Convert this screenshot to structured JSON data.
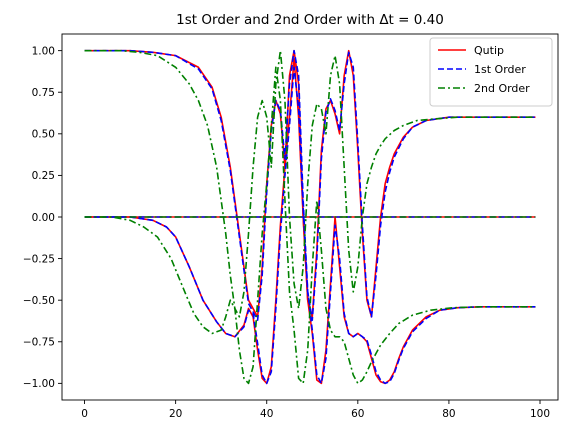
{
  "chart_data": {
    "type": "line",
    "title": "1st Order and 2nd Order with Δt = 0.40",
    "xlabel": "",
    "ylabel": "",
    "xlim": [
      -4.95,
      103.95
    ],
    "ylim": [
      -1.1,
      1.1
    ],
    "xticks": [
      0,
      20,
      40,
      60,
      80,
      100
    ],
    "xtick_labels": [
      "0",
      "20",
      "40",
      "60",
      "80",
      "100"
    ],
    "yticks": [
      -1.0,
      -0.75,
      -0.5,
      -0.25,
      0.0,
      0.25,
      0.5,
      0.75,
      1.0
    ],
    "ytick_labels": [
      "−1.00",
      "−0.75",
      "−0.50",
      "−0.25",
      "0.00",
      "0.25",
      "0.50",
      "0.75",
      "1.00"
    ],
    "grid": false,
    "legend_position": "top-right",
    "series": [
      {
        "name": "Qutip",
        "color": "#ff0000",
        "style": "solid",
        "lines": [
          {
            "x": [
              0,
              10,
              15,
              20,
              25,
              28,
              30,
              32,
              34,
              36,
              38,
              39,
              40,
              41,
              42,
              43,
              44,
              45,
              46,
              47,
              48,
              49,
              50,
              51,
              52,
              53,
              54,
              55,
              56,
              57,
              58,
              59,
              60,
              61,
              62,
              63,
              64,
              65,
              66,
              67,
              68,
              70,
              72,
              75,
              80,
              85,
              90,
              95,
              99
            ],
            "y": [
              1.0,
              1.0,
              0.99,
              0.97,
              0.9,
              0.78,
              0.6,
              0.3,
              -0.1,
              -0.5,
              -0.6,
              -0.3,
              0.2,
              0.55,
              0.7,
              0.62,
              0.3,
              0.85,
              1.0,
              0.8,
              0.0,
              -0.5,
              -0.6,
              -0.2,
              0.4,
              0.65,
              0.7,
              0.62,
              0.5,
              0.85,
              1.0,
              0.85,
              0.4,
              -0.1,
              -0.5,
              -0.6,
              -0.3,
              0.0,
              0.2,
              0.3,
              0.38,
              0.48,
              0.54,
              0.58,
              0.6,
              0.6,
              0.6,
              0.6,
              0.6
            ]
          },
          {
            "x": [
              0,
              10,
              15,
              18,
              20,
              23,
              26,
              29,
              31,
              33,
              35,
              36,
              37,
              38,
              39,
              40,
              41,
              42,
              43,
              44,
              45,
              46,
              47,
              48,
              49,
              50,
              51,
              52,
              53,
              54,
              55,
              56,
              57,
              58,
              59,
              60,
              61,
              62,
              63,
              64,
              65,
              66,
              67,
              68,
              69,
              70,
              72,
              75,
              78,
              82,
              87,
              92,
              99
            ],
            "y": [
              0.0,
              0.0,
              -0.02,
              -0.06,
              -0.12,
              -0.3,
              -0.5,
              -0.63,
              -0.7,
              -0.72,
              -0.65,
              -0.55,
              -0.6,
              -0.8,
              -0.97,
              -1.0,
              -0.9,
              -0.5,
              -0.05,
              0.3,
              0.6,
              0.95,
              0.6,
              0.0,
              -0.5,
              -0.7,
              -0.98,
              -1.0,
              -0.8,
              -0.4,
              0.0,
              -0.3,
              -0.6,
              -0.7,
              -0.72,
              -0.7,
              -0.72,
              -0.75,
              -0.85,
              -0.95,
              -0.99,
              -1.0,
              -0.98,
              -0.93,
              -0.85,
              -0.78,
              -0.68,
              -0.6,
              -0.56,
              -0.545,
              -0.54,
              -0.54,
              -0.54
            ]
          },
          {
            "x": [
              0,
              99
            ],
            "y": [
              0.0,
              0.0
            ]
          }
        ]
      },
      {
        "name": "1st Order",
        "color": "#0000ff",
        "style": "dashed",
        "lines": [
          {
            "x": [
              0,
              10,
              15,
              20,
              25,
              28,
              30,
              32,
              34,
              36,
              38,
              39,
              40,
              41,
              42,
              43,
              44,
              45,
              46,
              47,
              48,
              49,
              50,
              51,
              52,
              53,
              54,
              55,
              56,
              57,
              58,
              59,
              60,
              61,
              62,
              63,
              64,
              65,
              66,
              67,
              68,
              70,
              72,
              75,
              80,
              85,
              90,
              95,
              99
            ],
            "y": [
              1.0,
              1.0,
              0.99,
              0.97,
              0.89,
              0.77,
              0.58,
              0.28,
              -0.12,
              -0.52,
              -0.62,
              -0.35,
              0.15,
              0.52,
              0.7,
              0.64,
              0.35,
              0.8,
              1.0,
              0.85,
              0.1,
              -0.45,
              -0.62,
              -0.25,
              0.35,
              0.63,
              0.71,
              0.64,
              0.52,
              0.8,
              0.99,
              0.9,
              0.45,
              -0.05,
              -0.48,
              -0.6,
              -0.35,
              -0.05,
              0.15,
              0.27,
              0.36,
              0.47,
              0.54,
              0.58,
              0.6,
              0.6,
              0.6,
              0.6,
              0.6
            ]
          },
          {
            "x": [
              0,
              10,
              15,
              18,
              20,
              23,
              26,
              29,
              31,
              33,
              35,
              36,
              37,
              38,
              39,
              40,
              41,
              42,
              43,
              44,
              45,
              46,
              47,
              48,
              49,
              50,
              51,
              52,
              53,
              54,
              55,
              56,
              57,
              58,
              59,
              60,
              61,
              62,
              63,
              64,
              65,
              66,
              67,
              68,
              69,
              70,
              72,
              75,
              78,
              82,
              87,
              92,
              99
            ],
            "y": [
              0.0,
              0.0,
              -0.02,
              -0.06,
              -0.12,
              -0.3,
              -0.5,
              -0.63,
              -0.7,
              -0.72,
              -0.66,
              -0.56,
              -0.58,
              -0.76,
              -0.95,
              -1.0,
              -0.93,
              -0.55,
              -0.1,
              0.25,
              0.55,
              0.9,
              0.65,
              0.05,
              -0.45,
              -0.68,
              -0.95,
              -1.0,
              -0.85,
              -0.45,
              -0.05,
              -0.25,
              -0.58,
              -0.7,
              -0.72,
              -0.7,
              -0.72,
              -0.74,
              -0.83,
              -0.93,
              -0.98,
              -1.0,
              -0.99,
              -0.94,
              -0.86,
              -0.79,
              -0.69,
              -0.61,
              -0.56,
              -0.545,
              -0.54,
              -0.54,
              -0.54
            ]
          },
          {
            "x": [
              0,
              99
            ],
            "y": [
              0.0,
              0.0
            ]
          }
        ]
      },
      {
        "name": "2nd Order",
        "color": "#008000",
        "style": "dashdot",
        "lines": [
          {
            "x": [
              0,
              8,
              12,
              16,
              20,
              23,
              25,
              27,
              29,
              30,
              31,
              32,
              33,
              34,
              35,
              36,
              37,
              38,
              39,
              40,
              41,
              42,
              43,
              44,
              45,
              46,
              47,
              48,
              49,
              50,
              51,
              52,
              53,
              54,
              55,
              56,
              57,
              58,
              59,
              60,
              61,
              62,
              63,
              64,
              65,
              66,
              68,
              70,
              73,
              77,
              82,
              88,
              94,
              99
            ],
            "y": [
              1.0,
              1.0,
              0.99,
              0.97,
              0.9,
              0.8,
              0.7,
              0.55,
              0.3,
              0.1,
              -0.1,
              -0.35,
              -0.55,
              -0.6,
              -0.45,
              -0.1,
              0.3,
              0.6,
              0.7,
              0.6,
              0.3,
              0.8,
              1.0,
              0.7,
              0.0,
              -0.4,
              -0.55,
              -0.3,
              0.2,
              0.55,
              0.68,
              0.65,
              0.5,
              0.85,
              0.97,
              0.8,
              0.3,
              -0.2,
              -0.45,
              -0.3,
              0.0,
              0.2,
              0.3,
              0.38,
              0.43,
              0.47,
              0.52,
              0.55,
              0.58,
              0.59,
              0.6,
              0.6,
              0.6,
              0.6
            ]
          },
          {
            "x": [
              0,
              6,
              10,
              13,
              16,
              19,
              22,
              24,
              26,
              28,
              30,
              31,
              32,
              33,
              34,
              35,
              36,
              37,
              38,
              39,
              40,
              41,
              42,
              43,
              44,
              45,
              46,
              47,
              48,
              49,
              50,
              51,
              52,
              53,
              54,
              55,
              56,
              57,
              58,
              59,
              60,
              61,
              62,
              63,
              64,
              65,
              67,
              69,
              72,
              76,
              81,
              87,
              94,
              99
            ],
            "y": [
              0.0,
              0.0,
              -0.02,
              -0.06,
              -0.12,
              -0.25,
              -0.45,
              -0.58,
              -0.66,
              -0.7,
              -0.68,
              -0.6,
              -0.5,
              -0.55,
              -0.8,
              -0.97,
              -1.0,
              -0.9,
              -0.5,
              -0.1,
              0.2,
              0.55,
              0.9,
              0.7,
              0.1,
              -0.45,
              -0.68,
              -0.97,
              -1.0,
              -0.8,
              -0.3,
              0.1,
              -0.2,
              -0.55,
              -0.68,
              -0.72,
              -0.72,
              -0.75,
              -0.85,
              -0.95,
              -1.0,
              -0.98,
              -0.93,
              -0.87,
              -0.82,
              -0.77,
              -0.7,
              -0.64,
              -0.59,
              -0.56,
              -0.545,
              -0.54,
              -0.54,
              -0.54
            ]
          },
          {
            "x": [
              0,
              99
            ],
            "y": [
              0.0,
              0.0
            ]
          }
        ]
      }
    ]
  }
}
